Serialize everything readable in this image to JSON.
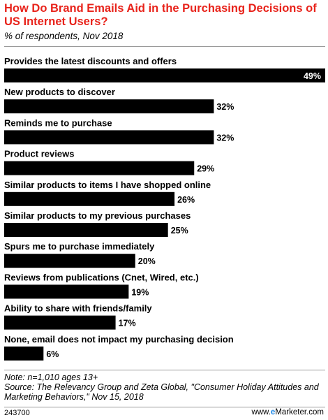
{
  "header": {
    "title": "How Do Brand Emails Aid in the Purchasing Decisions of US Internet Users?",
    "subtitle": "% of respondents, Nov 2018"
  },
  "chart_data": {
    "type": "bar",
    "orientation": "horizontal",
    "title": "How Do Brand Emails Aid in the Purchasing Decisions of US Internet Users?",
    "subtitle": "% of respondents, Nov 2018",
    "categories": [
      "Provides the latest discounts and offers",
      "New products to discover",
      "Reminds me to purchase",
      "Product reviews",
      "Similar products to items I have shopped online",
      "Similar products to my previous purchases",
      "Spurs me to purchase immediately",
      "Reviews from publications (Cnet, Wired, etc.)",
      "Ability to share with friends/family",
      "None, email does not impact my purchasing decision"
    ],
    "values": [
      49,
      32,
      32,
      29,
      26,
      25,
      20,
      19,
      17,
      6
    ],
    "value_labels": [
      "49%",
      "32%",
      "32%",
      "29%",
      "26%",
      "25%",
      "20%",
      "19%",
      "17%",
      "6%"
    ],
    "unit": "%",
    "xlim": [
      0,
      49
    ],
    "bar_color": "#000000",
    "grid": false,
    "legend": "none"
  },
  "footer": {
    "note": "Note: n=1,010 ages 13+",
    "source": "Source: The Relevancy Group and Zeta Global, \"Consumer Holiday Attitudes and Marketing Behaviors,\" Nov 15, 2018",
    "chart_id": "243700",
    "brand_prefix": "www.",
    "brand_mark": "e",
    "brand_suffix": "Marketer.com"
  },
  "colors": {
    "title": "#e8231b",
    "bars": "#000000",
    "brand_accent": "#1e88e5"
  }
}
